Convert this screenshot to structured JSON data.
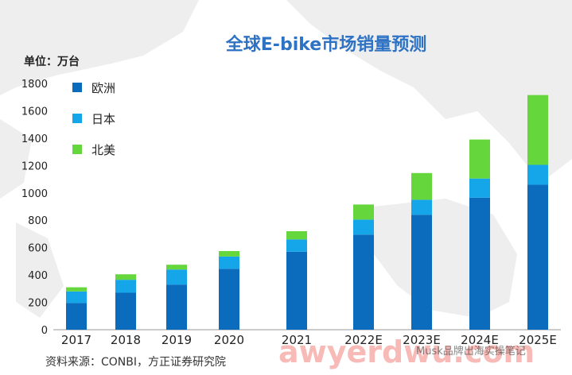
{
  "chart_data": {
    "type": "bar",
    "stacked": true,
    "title": "全球E-bike市场销量预测",
    "unit_label": "单位：万台",
    "categories": [
      "2017",
      "2018",
      "2019",
      "2020",
      "2021",
      "2022E",
      "2023E",
      "2024E",
      "2025E"
    ],
    "series": [
      {
        "name": "欧洲",
        "color": "#0b6bbd",
        "values": [
          195,
          270,
          330,
          445,
          570,
          695,
          840,
          965,
          1060
        ]
      },
      {
        "name": "日本",
        "color": "#14a6e8",
        "values": [
          85,
          95,
          110,
          90,
          90,
          110,
          110,
          140,
          145
        ]
      },
      {
        "name": "北美",
        "color": "#65d63c",
        "values": [
          30,
          40,
          35,
          40,
          60,
          110,
          195,
          285,
          510
        ]
      }
    ],
    "ylim": [
      0,
      1800
    ],
    "yticks": [
      0,
      200,
      400,
      600,
      800,
      1000,
      1200,
      1400,
      1600,
      1800
    ],
    "legend_position": "top-left",
    "grid": false,
    "source": "资料来源：CONBI，方正证券研究院"
  },
  "watermark": {
    "text": "awyerdwu.com",
    "account": "Musk品牌出海实操笔记"
  }
}
